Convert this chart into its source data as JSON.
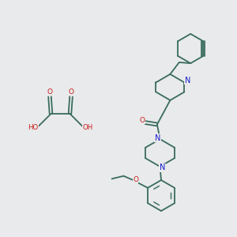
{
  "background_color": "#e8eaeb",
  "bond_color": "#3a6b5e",
  "N_color": "#1a1acc",
  "O_color": "#cc1a1a",
  "line_width": 1.3,
  "figsize": [
    3.0,
    3.0
  ],
  "dpi": 100,
  "xlim": [
    0,
    10
  ],
  "ylim": [
    0,
    10
  ]
}
